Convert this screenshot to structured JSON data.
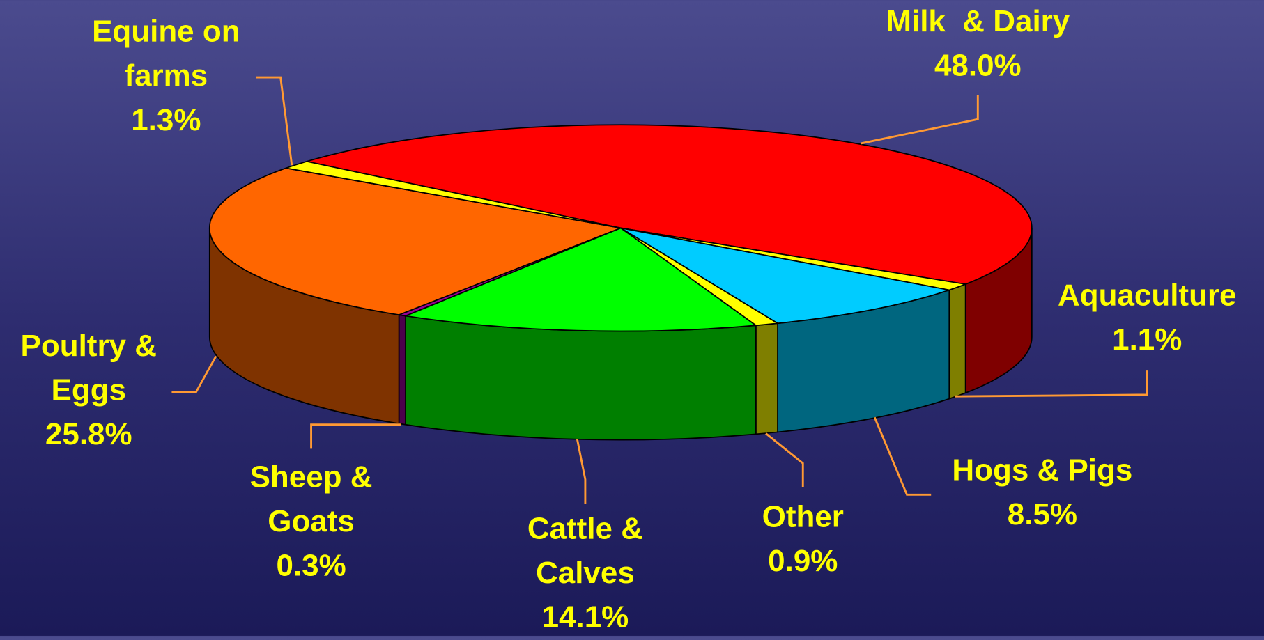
{
  "chart_data": {
    "type": "pie3d",
    "categories": [
      "Milk  & Dairy",
      "Aquaculture",
      "Hogs & Pigs",
      "Other",
      "Cattle & Calves",
      "Sheep & Goats",
      "Poultry & Eggs",
      "Equine on farms"
    ],
    "values": [
      48.0,
      1.1,
      8.5,
      0.9,
      14.1,
      0.3,
      25.8,
      1.3
    ],
    "value_labels": [
      "48.0%",
      "1.1%",
      "8.5%",
      "0.9%",
      "14.1%",
      "0.3%",
      "25.8%",
      "1.3%"
    ],
    "colors": [
      "#ff0000",
      "#ffff00",
      "#00ccff",
      "#ffff00",
      "#00ff00",
      "#990099",
      "#ff6600",
      "#ffff00"
    ]
  }
}
